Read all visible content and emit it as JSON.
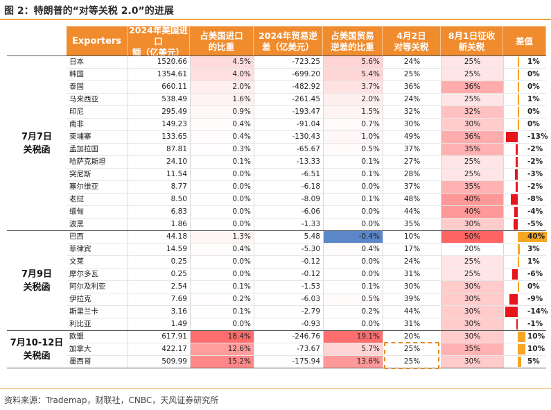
{
  "title": "图 2：特朗普的“对等关税 2.0”的进展",
  "source": "资料来源：Trademap，财联社，CNBC，天风证券研究所",
  "headers": [
    "Exporters",
    "2024年美国进口\n额（亿美元）",
    "占美国进口\n的比重",
    "2024年贸易逆\n差（亿美元）",
    "占美国贸易\n逆差的比重",
    "4月2日\n对等关税",
    "8月1日征收\n新关税",
    "差值"
  ],
  "groups": [
    {
      "label": "7月7日\n关税函",
      "start": 0,
      "count": 14
    },
    {
      "label": "7月9日\n关税函",
      "start": 14,
      "count": 8
    },
    {
      "label": "7月10-12日\n关税函",
      "start": 22,
      "count": 3
    }
  ],
  "colors": {
    "pink_light": "#fde0e0",
    "pink_mid": "#f8a8a8",
    "pink_strong": "#f57b7b",
    "red": "#e8151b",
    "orange": "#f5a623",
    "blue": "#5b87c9",
    "header": "#f08c2e"
  },
  "rows": [
    {
      "name": "日本",
      "imp": "1520.66",
      "imp_share": "4.5%",
      "imp_share_v": 4.5,
      "deficit": "-723.25",
      "def_share": "5.6%",
      "def_share_v": 5.6,
      "apr": "24%",
      "aug": "25%",
      "aug_v": 25,
      "diff": "1%",
      "diff_v": 1
    },
    {
      "name": "韩国",
      "imp": "1354.61",
      "imp_share": "4.0%",
      "imp_share_v": 4.0,
      "deficit": "-699.20",
      "def_share": "5.4%",
      "def_share_v": 5.4,
      "apr": "25%",
      "aug": "25%",
      "aug_v": 25,
      "diff": "0%",
      "diff_v": 0
    },
    {
      "name": "泰国",
      "imp": "660.11",
      "imp_share": "2.0%",
      "imp_share_v": 2.0,
      "deficit": "-482.92",
      "def_share": "3.7%",
      "def_share_v": 3.7,
      "apr": "36%",
      "aug": "36%",
      "aug_v": 36,
      "diff": "0%",
      "diff_v": 0
    },
    {
      "name": "马来西亚",
      "imp": "538.49",
      "imp_share": "1.6%",
      "imp_share_v": 1.6,
      "deficit": "-261.45",
      "def_share": "2.0%",
      "def_share_v": 2.0,
      "apr": "24%",
      "aug": "25%",
      "aug_v": 25,
      "diff": "1%",
      "diff_v": 1
    },
    {
      "name": "印尼",
      "imp": "295.49",
      "imp_share": "0.9%",
      "imp_share_v": 0.9,
      "deficit": "-193.47",
      "def_share": "1.5%",
      "def_share_v": 1.5,
      "apr": "32%",
      "aug": "32%",
      "aug_v": 32,
      "diff": "0%",
      "diff_v": 0
    },
    {
      "name": "南非",
      "imp": "149.23",
      "imp_share": "0.4%",
      "imp_share_v": 0.4,
      "deficit": "-91.04",
      "def_share": "0.7%",
      "def_share_v": 0.7,
      "apr": "30%",
      "aug": "30%",
      "aug_v": 30,
      "diff": "0%",
      "diff_v": 0
    },
    {
      "name": "柬埔寨",
      "imp": "133.65",
      "imp_share": "0.4%",
      "imp_share_v": 0.4,
      "deficit": "-130.43",
      "def_share": "1.0%",
      "def_share_v": 1.0,
      "apr": "49%",
      "aug": "36%",
      "aug_v": 36,
      "diff": "-13%",
      "diff_v": -13
    },
    {
      "name": "孟加拉国",
      "imp": "87.81",
      "imp_share": "0.3%",
      "imp_share_v": 0.3,
      "deficit": "-65.67",
      "def_share": "0.5%",
      "def_share_v": 0.5,
      "apr": "37%",
      "aug": "35%",
      "aug_v": 35,
      "diff": "-2%",
      "diff_v": -2
    },
    {
      "name": "哈萨克斯坦",
      "imp": "24.10",
      "imp_share": "0.1%",
      "imp_share_v": 0.1,
      "deficit": "-13.33",
      "def_share": "0.1%",
      "def_share_v": 0.1,
      "apr": "27%",
      "aug": "25%",
      "aug_v": 25,
      "diff": "-2%",
      "diff_v": -2
    },
    {
      "name": "突尼斯",
      "imp": "11.54",
      "imp_share": "0.0%",
      "imp_share_v": 0.0,
      "deficit": "-6.51",
      "def_share": "0.1%",
      "def_share_v": 0.1,
      "apr": "28%",
      "aug": "25%",
      "aug_v": 25,
      "diff": "-3%",
      "diff_v": -3
    },
    {
      "name": "塞尔维亚",
      "imp": "8.77",
      "imp_share": "0.0%",
      "imp_share_v": 0.0,
      "deficit": "-6.18",
      "def_share": "0.0%",
      "def_share_v": 0.0,
      "apr": "37%",
      "aug": "35%",
      "aug_v": 35,
      "diff": "-2%",
      "diff_v": -2
    },
    {
      "name": "老挝",
      "imp": "8.50",
      "imp_share": "0.0%",
      "imp_share_v": 0.0,
      "deficit": "-8.09",
      "def_share": "0.1%",
      "def_share_v": 0.1,
      "apr": "48%",
      "aug": "40%",
      "aug_v": 40,
      "diff": "-8%",
      "diff_v": -8
    },
    {
      "name": "缅甸",
      "imp": "6.83",
      "imp_share": "0.0%",
      "imp_share_v": 0.0,
      "deficit": "-6.06",
      "def_share": "0.0%",
      "def_share_v": 0.0,
      "apr": "44%",
      "aug": "40%",
      "aug_v": 40,
      "diff": "-4%",
      "diff_v": -4
    },
    {
      "name": "波黑",
      "imp": "1.86",
      "imp_share": "0.0%",
      "imp_share_v": 0.0,
      "deficit": "-1.33",
      "def_share": "0.0%",
      "def_share_v": 0.0,
      "apr": "35%",
      "aug": "30%",
      "aug_v": 30,
      "diff": "-5%",
      "diff_v": -5
    },
    {
      "name": "巴西",
      "imp": "44.18",
      "imp_share": "1.3%",
      "imp_share_v": 1.3,
      "deficit": "5.48",
      "def_share": "-0.4%",
      "def_share_v": -0.4,
      "apr": "10%",
      "aug": "50%",
      "aug_v": 50,
      "diff": "40%",
      "diff_v": 40
    },
    {
      "name": "菲律宾",
      "imp": "14.59",
      "imp_share": "0.4%",
      "imp_share_v": 0.4,
      "deficit": "-5.30",
      "def_share": "0.4%",
      "def_share_v": 0.4,
      "apr": "17%",
      "aug": "20%",
      "aug_v": 20,
      "diff": "3%",
      "diff_v": 3
    },
    {
      "name": "文莱",
      "imp": "0.25",
      "imp_share": "0.0%",
      "imp_share_v": 0.0,
      "deficit": "-0.12",
      "def_share": "0.0%",
      "def_share_v": 0.0,
      "apr": "24%",
      "aug": "25%",
      "aug_v": 25,
      "diff": "1%",
      "diff_v": 1
    },
    {
      "name": "摩尔多瓦",
      "imp": "0.25",
      "imp_share": "0.0%",
      "imp_share_v": 0.0,
      "deficit": "-0.12",
      "def_share": "0.0%",
      "def_share_v": 0.0,
      "apr": "31%",
      "aug": "25%",
      "aug_v": 25,
      "diff": "-6%",
      "diff_v": -6
    },
    {
      "name": "阿尔及利亚",
      "imp": "2.54",
      "imp_share": "0.1%",
      "imp_share_v": 0.1,
      "deficit": "-1.53",
      "def_share": "0.1%",
      "def_share_v": 0.1,
      "apr": "30%",
      "aug": "30%",
      "aug_v": 30,
      "diff": "0%",
      "diff_v": 0
    },
    {
      "name": "伊拉克",
      "imp": "7.69",
      "imp_share": "0.2%",
      "imp_share_v": 0.2,
      "deficit": "-6.03",
      "def_share": "0.5%",
      "def_share_v": 0.5,
      "apr": "39%",
      "aug": "30%",
      "aug_v": 30,
      "diff": "-9%",
      "diff_v": -9
    },
    {
      "name": "斯里兰卡",
      "imp": "3.16",
      "imp_share": "0.1%",
      "imp_share_v": 0.1,
      "deficit": "-2.79",
      "def_share": "0.2%",
      "def_share_v": 0.2,
      "apr": "44%",
      "aug": "30%",
      "aug_v": 30,
      "diff": "-14%",
      "diff_v": -14
    },
    {
      "name": "利比亚",
      "imp": "1.49",
      "imp_share": "0.0%",
      "imp_share_v": 0.0,
      "deficit": "-0.93",
      "def_share": "0.0%",
      "def_share_v": 0.0,
      "apr": "31%",
      "aug": "30%",
      "aug_v": 30,
      "diff": "-1%",
      "diff_v": -1
    },
    {
      "name": "欧盟",
      "imp": "617.91",
      "imp_share": "18.4%",
      "imp_share_v": 18.4,
      "deficit": "-246.76",
      "def_share": "19.1%",
      "def_share_v": 19.1,
      "apr": "20%",
      "aug": "30%",
      "aug_v": 30,
      "diff": "10%",
      "diff_v": 10
    },
    {
      "name": "加拿大",
      "imp": "422.17",
      "imp_share": "12.6%",
      "imp_share_v": 12.6,
      "deficit": "-73.67",
      "def_share": "5.7%",
      "def_share_v": 5.7,
      "apr": "25%",
      "aug": "35%",
      "aug_v": 35,
      "diff": "10%",
      "diff_v": 10
    },
    {
      "name": "墨西哥",
      "imp": "509.99",
      "imp_share": "15.2%",
      "imp_share_v": 15.2,
      "deficit": "-175.94",
      "def_share": "13.6%",
      "def_share_v": 13.6,
      "apr": "25%",
      "aug": "30%",
      "aug_v": 30,
      "diff": "5%",
      "diff_v": 5
    }
  ]
}
